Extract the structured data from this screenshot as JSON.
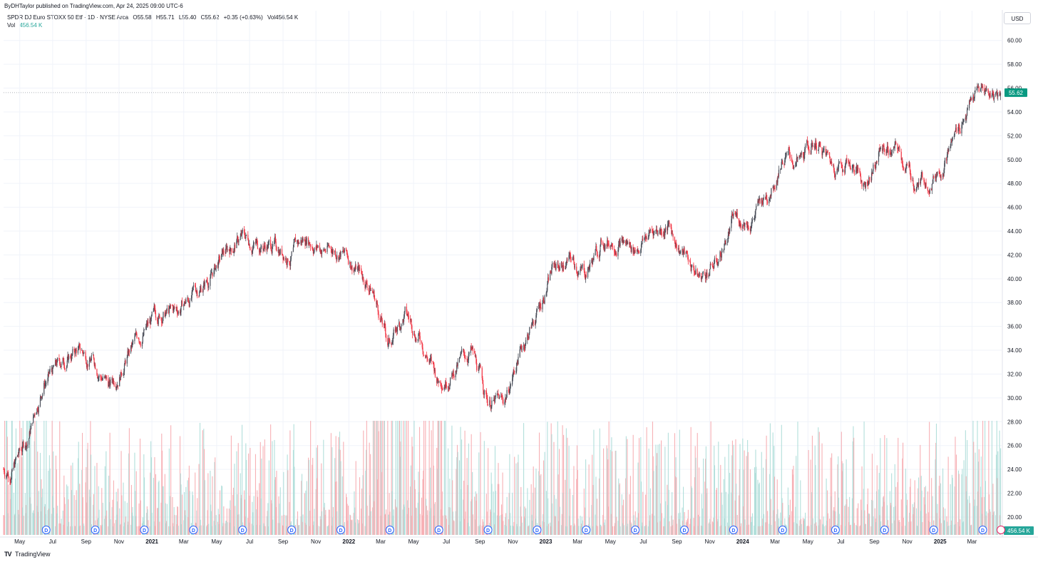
{
  "header": {
    "published": "ByDHTaylor published on TradingView.com, Apr 24, 2025 09:00 UTC-6",
    "symbol_line": "SPDR DJ Euro STOXX 50 Etf · 1D · NYSE Arca",
    "open": "O55.58",
    "high": "H55.71",
    "low": "L55.40",
    "close": "C55.62",
    "change": "+0.35 (+0.63%)",
    "volume_inline": "Vol456.54 K",
    "vol_label": "Vol",
    "vol_value": "456.54 K",
    "currency": "USD"
  },
  "footer": {
    "logo_text": "TV",
    "brand": "TradingView"
  },
  "colors": {
    "up": "#787b86",
    "down": "#f23645",
    "vol_up": "#b2dfdb",
    "vol_down": "#f7b0b5",
    "price_tag": "#089981",
    "accent": "#2962ff",
    "grid": "#f0f3fa"
  },
  "chart_data": {
    "type": "candlestick",
    "ylim": [
      18.5,
      61
    ],
    "y_ticks": [
      "20.00",
      "22.00",
      "24.00",
      "26.00",
      "28.00",
      "30.00",
      "32.00",
      "34.00",
      "36.00",
      "38.00",
      "40.00",
      "42.00",
      "44.00",
      "46.00",
      "48.00",
      "50.00",
      "52.00",
      "54.00",
      "56.00",
      "58.00",
      "60.00"
    ],
    "x_ticks": [
      "May",
      "Jul",
      "Sep",
      "Nov",
      "2021",
      "Mar",
      "May",
      "Jul",
      "Sep",
      "Nov",
      "2022",
      "Mar",
      "May",
      "Jul",
      "Sep",
      "Nov",
      "2023",
      "Mar",
      "May",
      "Jul",
      "Sep",
      "Nov",
      "2024",
      "Mar",
      "May",
      "Jul",
      "Sep",
      "Nov",
      "2025",
      "Mar"
    ],
    "trend_x": [
      "2020-04",
      "2020-05",
      "2020-06",
      "2020-07",
      "2020-08",
      "2020-09",
      "2020-10",
      "2020-11",
      "2020-12",
      "2021-01",
      "2021-02",
      "2021-03",
      "2021-04",
      "2021-05",
      "2021-06",
      "2021-07",
      "2021-08",
      "2021-09",
      "2021-10",
      "2021-11",
      "2021-12",
      "2022-01",
      "2022-02",
      "2022-03",
      "2022-04",
      "2022-05",
      "2022-06",
      "2022-07",
      "2022-08",
      "2022-09",
      "2022-10",
      "2022-11",
      "2022-12",
      "2023-01",
      "2023-02",
      "2023-03",
      "2023-04",
      "2023-05",
      "2023-06",
      "2023-07",
      "2023-08",
      "2023-09",
      "2023-10",
      "2023-11",
      "2023-12",
      "2024-01",
      "2024-02",
      "2024-03",
      "2024-04",
      "2024-05",
      "2024-06",
      "2024-07",
      "2024-08",
      "2024-09",
      "2024-10",
      "2024-11",
      "2024-12",
      "2025-01",
      "2025-02",
      "2025-03",
      "2025-04"
    ],
    "trend_close": [
      24.0,
      26.5,
      31.5,
      32.8,
      34.0,
      33.2,
      31.0,
      33.5,
      35.5,
      37.0,
      37.2,
      38.5,
      40.0,
      42.0,
      43.5,
      43.0,
      42.8,
      42.0,
      43.5,
      42.5,
      42.5,
      41.0,
      39.0,
      34.5,
      37.0,
      35.0,
      31.5,
      32.5,
      34.0,
      30.0,
      29.5,
      34.0,
      37.0,
      41.0,
      41.5,
      40.5,
      43.0,
      43.5,
      42.5,
      44.0,
      44.5,
      42.0,
      40.0,
      41.5,
      45.0,
      45.0,
      47.0,
      50.5,
      49.5,
      51.5,
      49.5,
      50.0,
      48.0,
      51.0,
      50.5,
      48.0,
      48.5,
      50.5,
      54.0,
      56.0,
      55.62
    ],
    "last_price": "55.62",
    "last_volume": "456.54 K",
    "dividend_marker": "D"
  }
}
